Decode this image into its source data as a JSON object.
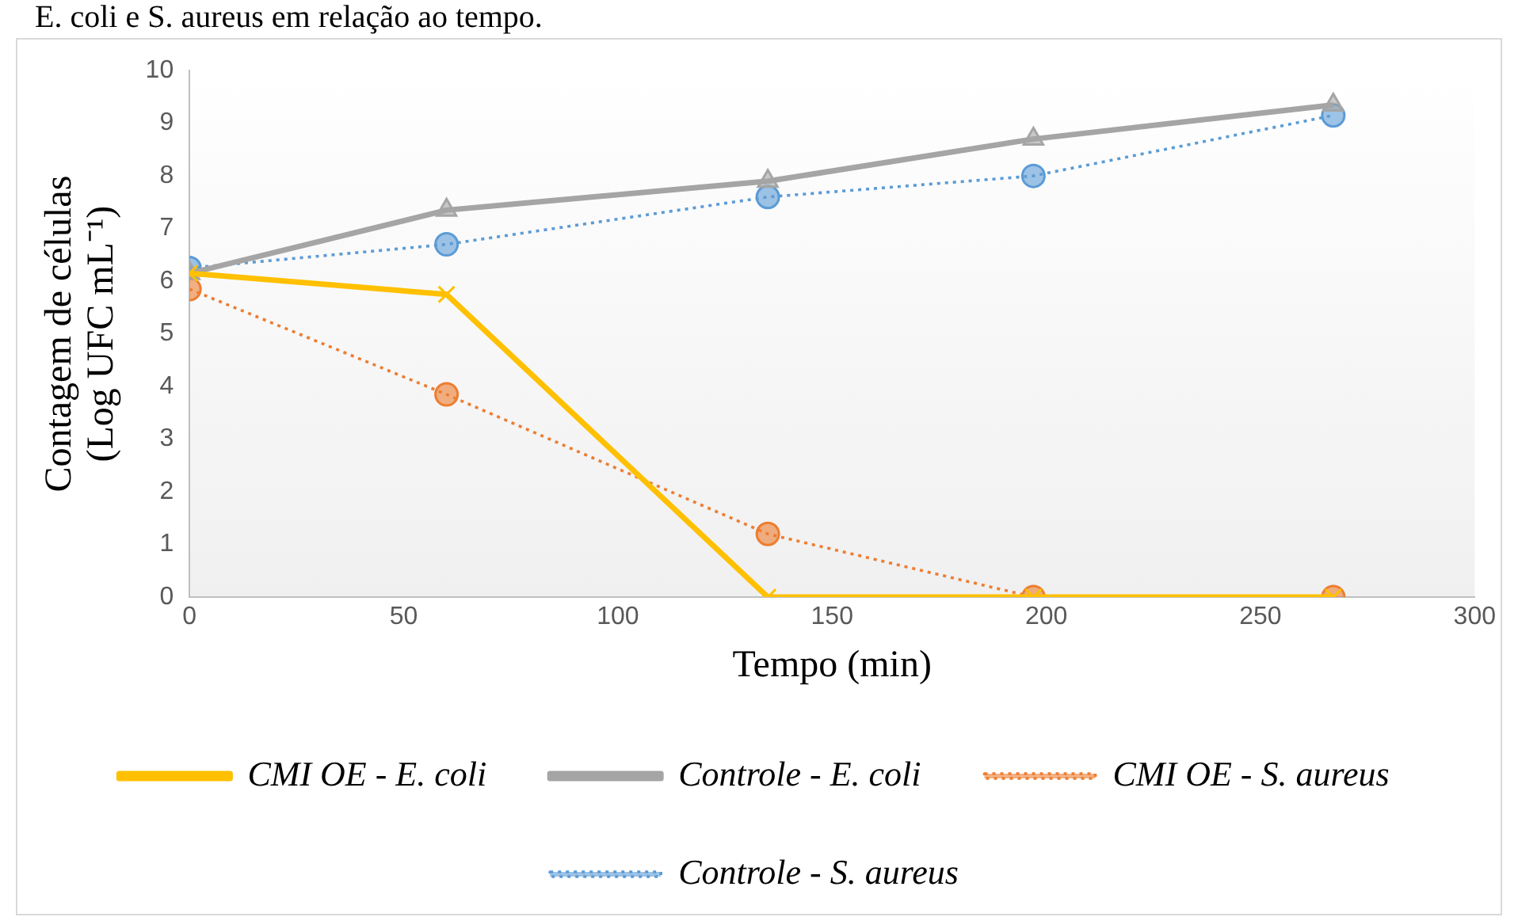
{
  "chart_data": {
    "type": "line",
    "xlabel": "Tempo (min)",
    "ylabel": "Contagem de células\n(Log UFC mL⁻¹)",
    "annotations": [
      "E. coli e S. aureus em relação ao tempo."
    ],
    "x": [
      0,
      60,
      135,
      197,
      267
    ],
    "xlim": [
      0,
      300
    ],
    "xticks": [
      0,
      50,
      100,
      150,
      200,
      250,
      300
    ],
    "ylim": [
      0,
      10
    ],
    "yticks": [
      0,
      1,
      2,
      3,
      4,
      5,
      6,
      7,
      8,
      9,
      10
    ],
    "grid": false,
    "legend": "bottom",
    "series": [
      {
        "name": "Controle - S. aureus",
        "color": "#5b9bd5",
        "marker": "circle",
        "line_style": "dotted",
        "values": [
          6.25,
          6.7,
          7.6,
          8.0,
          9.15
        ]
      },
      {
        "name": "CMI OE - S. aureus",
        "color": "#ed7d31",
        "marker": "circle",
        "line_style": "dotted",
        "values": [
          5.85,
          3.85,
          1.2,
          0,
          0
        ]
      },
      {
        "name": "Controle - E. coli",
        "color": "#a5a5a5",
        "marker": "triangle",
        "line_style": "solid",
        "values": [
          6.15,
          7.35,
          7.9,
          8.7,
          9.35
        ]
      },
      {
        "name": "CMI OE - E. coli",
        "color": "#ffc000",
        "marker": "cross",
        "line_style": "solid",
        "values": [
          6.15,
          5.75,
          0,
          0,
          0
        ]
      }
    ]
  }
}
